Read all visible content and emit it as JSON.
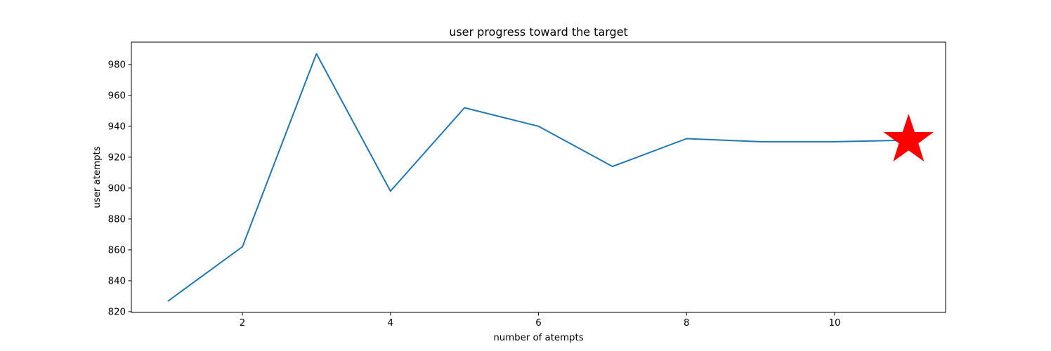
{
  "chart_data": {
    "type": "line",
    "title": "user progress toward the target",
    "xlabel": "number of atempts",
    "ylabel": "user atempts",
    "xlim": [
      0.5,
      11.5
    ],
    "ylim": [
      819.5,
      994.5
    ],
    "xticks": [
      2,
      4,
      6,
      8,
      10
    ],
    "yticks": [
      820,
      840,
      860,
      880,
      900,
      920,
      940,
      960,
      980
    ],
    "grid": false,
    "series": [
      {
        "x": [
          1,
          2,
          3,
          4,
          5,
          6,
          7,
          8,
          9,
          10,
          11
        ],
        "values": [
          827,
          862,
          987,
          898,
          952,
          940,
          914,
          932,
          930,
          930,
          931
        ],
        "color": "#1f77b4"
      }
    ],
    "marker": {
      "shape": "star",
      "x": 11,
      "y": 931,
      "color": "#ff0000"
    }
  }
}
